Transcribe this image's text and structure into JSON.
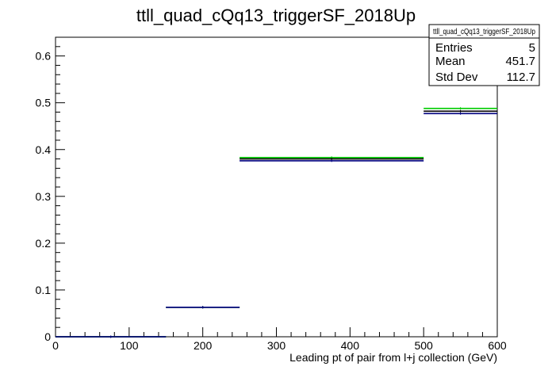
{
  "chart_data": {
    "type": "histogram",
    "title": "ttll_quad_cQq13_triggerSF_2018Up",
    "xlabel": "Leading pt of pair from l+j collection (GeV)",
    "ylabel": "",
    "xlim": [
      0,
      600
    ],
    "ylim": [
      0,
      0.64
    ],
    "grid": false,
    "x_ticks": [
      0,
      100,
      200,
      300,
      400,
      500,
      600
    ],
    "y_ticks": [
      0,
      0.1,
      0.2,
      0.3,
      0.4,
      0.5,
      0.6
    ],
    "bin_edges": [
      0,
      150,
      250,
      500,
      600
    ],
    "series": [
      {
        "color": "#00cc00",
        "values": [
          0.0,
          0.063,
          0.383,
          0.488
        ]
      },
      {
        "color": "#000000",
        "values": [
          0.0,
          0.063,
          0.38,
          0.482
        ]
      },
      {
        "color": "#000080",
        "values": [
          0.0,
          0.063,
          0.376,
          0.477
        ]
      }
    ],
    "stats_box": {
      "name": "ttll_quad_cQq13_triggerSF_2018Up",
      "rows": [
        {
          "label": "Entries",
          "value": "5"
        },
        {
          "label": "Mean",
          "value": "451.7"
        },
        {
          "label": "Std Dev",
          "value": "112.7"
        }
      ]
    }
  }
}
